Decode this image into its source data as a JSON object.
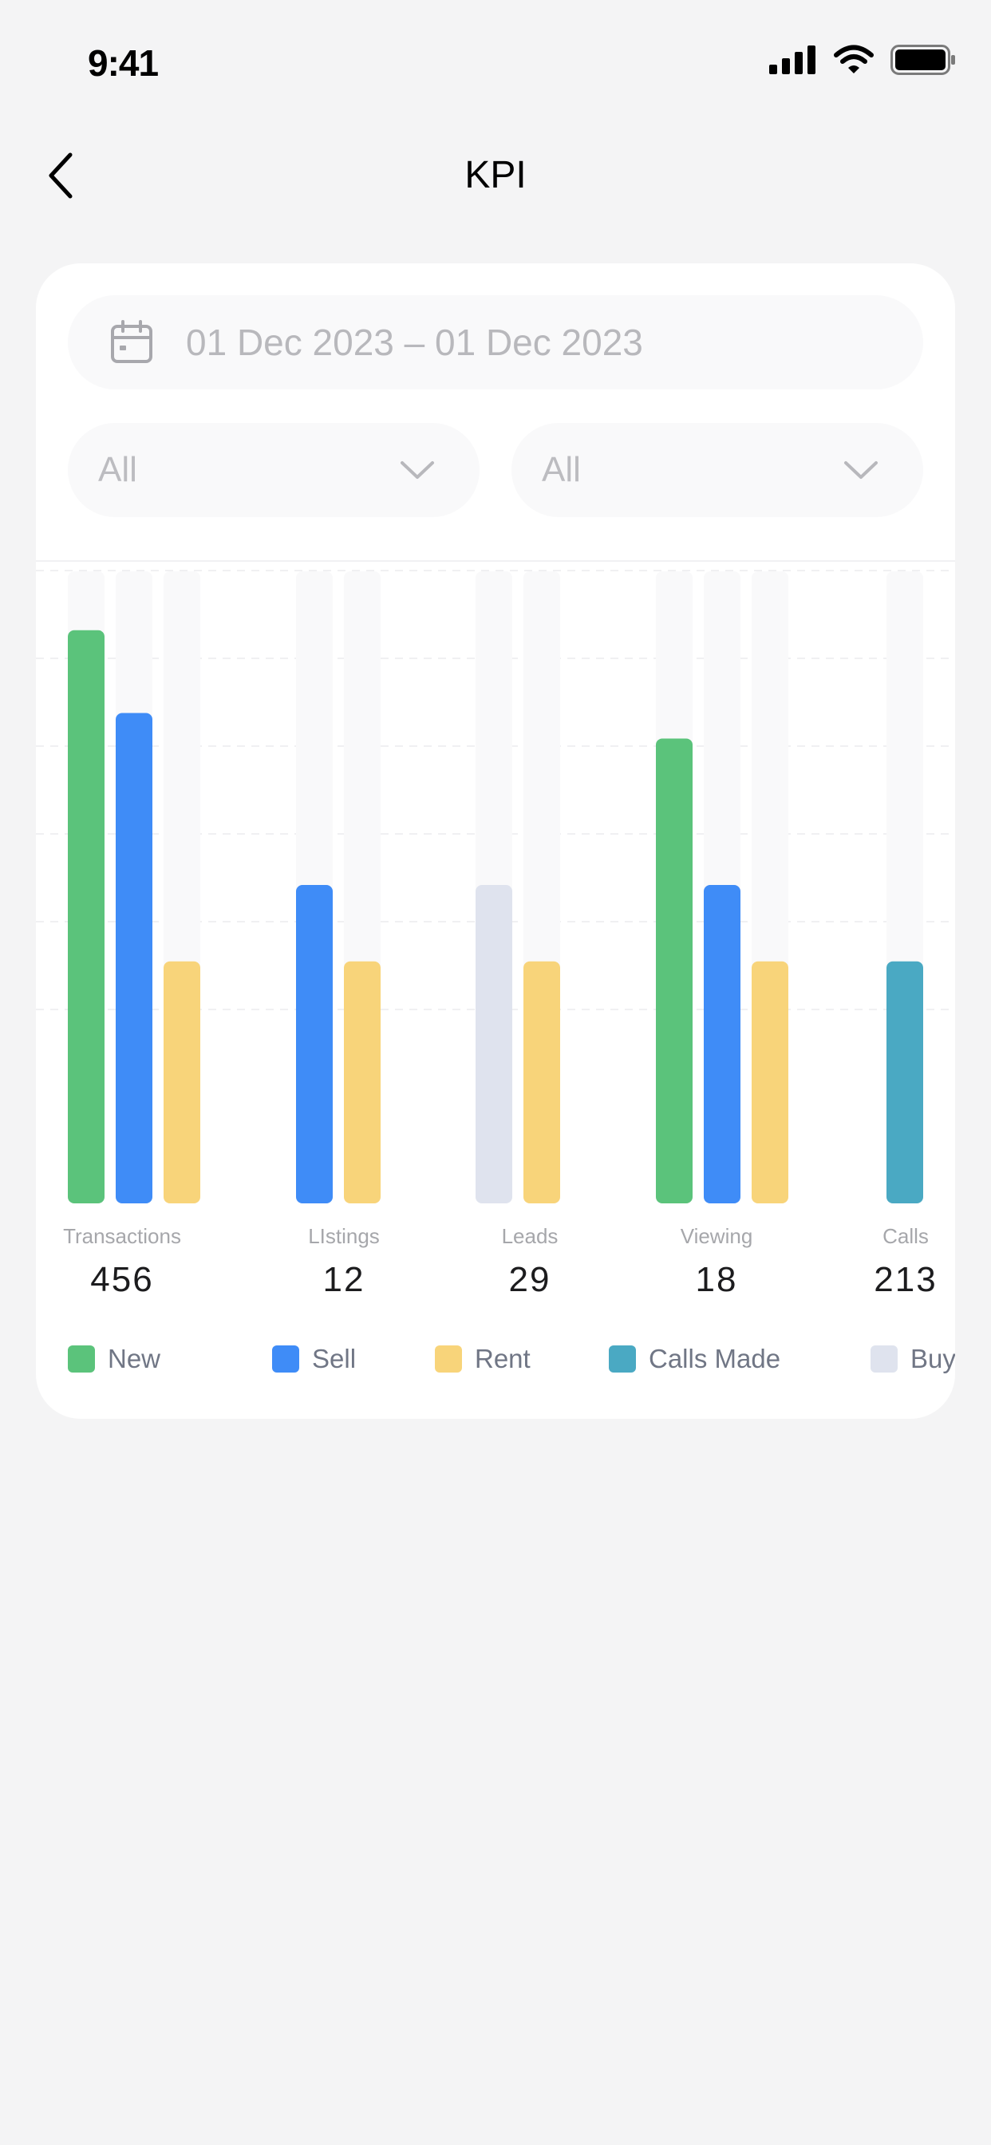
{
  "status_bar": {
    "time": "9:41"
  },
  "header": {
    "title": "KPI"
  },
  "filters": {
    "date_range": "01 Dec 2023 – 01 Dec 2023",
    "left_select": "All",
    "right_select": "All"
  },
  "colors": {
    "New": "#5bc37b",
    "Sell": "#3f8cf7",
    "Rent": "#f8d47a",
    "Calls Made": "#4aa9c3",
    "Buy": "#dfe3ee",
    "track": "#f9f9fa"
  },
  "icons": {
    "back": "chevron-left-icon",
    "calendar": "calendar-icon",
    "dropdown": "chevron-down-icon",
    "signal": "signal-icon",
    "wifi": "wifi-icon",
    "battery": "battery-icon"
  },
  "chart_data": {
    "type": "bar",
    "categories": [
      "Transactions",
      "LIstings",
      "Leads",
      "Viewing",
      "Calls"
    ],
    "totals": [
      "456",
      "12",
      "29",
      "18",
      "213"
    ],
    "legend": [
      "New",
      "Sell",
      "Rent",
      "Calls Made",
      "Buy"
    ],
    "groups": [
      {
        "category": "Transactions",
        "bars": [
          {
            "series": "New",
            "fill": 0.9
          },
          {
            "series": "Sell",
            "fill": 0.77
          },
          {
            "series": "Rent",
            "fill": 0.38
          }
        ]
      },
      {
        "category": "LIstings",
        "bars": [
          {
            "series": "Sell",
            "fill": 0.5
          },
          {
            "series": "Rent",
            "fill": 0.38
          }
        ]
      },
      {
        "category": "Leads",
        "bars": [
          {
            "series": "Buy",
            "fill": 0.5
          },
          {
            "series": "Rent",
            "fill": 0.38
          }
        ]
      },
      {
        "category": "Viewing",
        "bars": [
          {
            "series": "New",
            "fill": 0.73
          },
          {
            "series": "Sell",
            "fill": 0.5
          },
          {
            "series": "Rent",
            "fill": 0.38
          }
        ]
      },
      {
        "category": "Calls",
        "bars": [
          {
            "series": "Calls Made",
            "fill": 0.38
          }
        ]
      }
    ],
    "fill_scale": [
      0,
      1
    ],
    "grid": true,
    "legend_position": "bottom"
  }
}
